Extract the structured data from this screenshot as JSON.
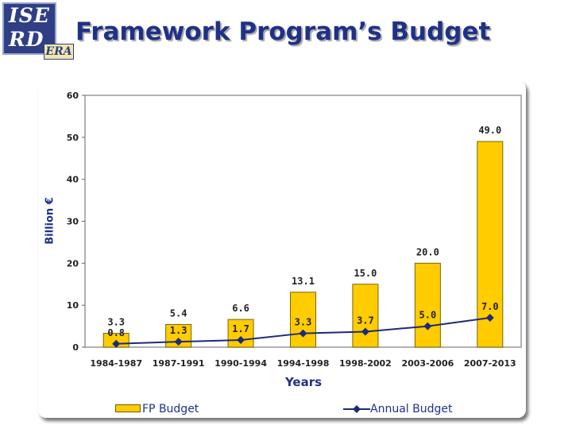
{
  "header": {
    "logo_line1": "ISE",
    "logo_line2": "RD",
    "logo_badge": "ERA",
    "title": "Framework Program’s Budget"
  },
  "colors": {
    "title": "#1f3187",
    "bar_fill": "#ffcc00",
    "line": "#1f2a78",
    "plot_bg": "#ffffff",
    "plot_border": "#999999"
  },
  "chart_data": {
    "type": "bar",
    "categories": [
      "1984-1987",
      "1987-1991",
      "1990-1994",
      "1994-1998",
      "1998-2002",
      "2003-2006",
      "2007-2013"
    ],
    "series": [
      {
        "name": "FP Budget",
        "type": "bar",
        "values": [
          3.3,
          5.4,
          6.6,
          13.1,
          15.0,
          20.0,
          49.0
        ],
        "labels": [
          "3.3",
          "5.4",
          "6.6",
          "13.1",
          "15.0",
          "20.0",
          "49.0"
        ]
      },
      {
        "name": "Annual Budget",
        "type": "line",
        "marker": "diamond",
        "values": [
          0.8,
          1.3,
          1.7,
          3.3,
          3.7,
          5.0,
          7.0
        ],
        "labels": [
          "0.8",
          "1.3",
          "1.7",
          "3.3",
          "3.7",
          "5.0",
          "7.0"
        ]
      }
    ],
    "xlabel": "Years",
    "ylabel": "Billion €",
    "ylim": [
      0,
      60
    ],
    "yticks": [
      0,
      10,
      20,
      30,
      40,
      50,
      60
    ],
    "grid": false,
    "legend_position": "bottom"
  }
}
